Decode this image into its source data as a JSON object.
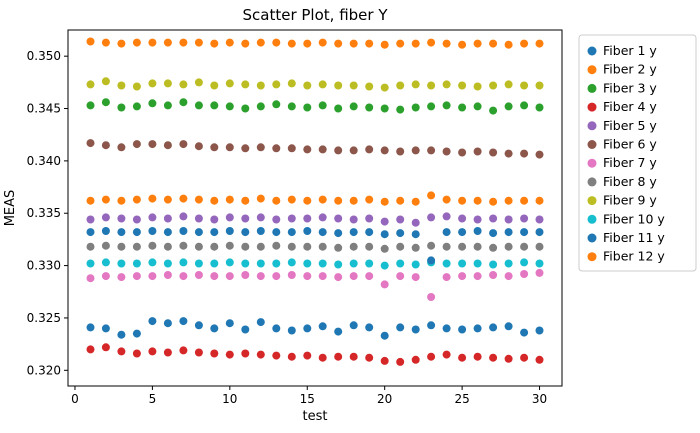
{
  "figure": {
    "title": "Scatter Plot, fiber Y",
    "xlabel": "test",
    "ylabel": "MEAS"
  },
  "chart_data": {
    "type": "scatter",
    "title": "Scatter Plot, fiber Y",
    "xlabel": "test",
    "ylabel": "MEAS",
    "legend_position": "right-outside",
    "grid": false,
    "xlim": [
      -0.45,
      31.45
    ],
    "ylim": [
      0.3185,
      0.3525
    ],
    "xticks": [
      0,
      5,
      10,
      15,
      20,
      25,
      30
    ],
    "yticks": [
      0.32,
      0.325,
      0.33,
      0.335,
      0.34,
      0.345,
      0.35
    ],
    "ytick_labels": [
      "0.320",
      "0.325",
      "0.330",
      "0.335",
      "0.340",
      "0.345",
      "0.350"
    ],
    "x": [
      1,
      2,
      3,
      4,
      5,
      6,
      7,
      8,
      9,
      10,
      11,
      12,
      13,
      14,
      15,
      16,
      17,
      18,
      19,
      20,
      21,
      22,
      23,
      24,
      25,
      26,
      27,
      28,
      29,
      30
    ],
    "series": [
      {
        "name": "Fiber 1 y",
        "color": "#1f77b4",
        "values": [
          0.3241,
          0.324,
          0.3234,
          0.3235,
          0.3247,
          0.3245,
          0.3247,
          0.3243,
          0.324,
          0.3245,
          0.3239,
          0.3246,
          0.324,
          0.3238,
          0.324,
          0.3242,
          0.3237,
          0.3243,
          0.3241,
          0.3233,
          0.3241,
          0.3239,
          0.3243,
          0.324,
          0.3239,
          0.324,
          0.3241,
          0.3242,
          0.3236,
          0.3238
        ]
      },
      {
        "name": "Fiber 2 y",
        "color": "#ff7f0e",
        "values": [
          0.3514,
          0.3513,
          0.3512,
          0.3513,
          0.3513,
          0.3513,
          0.3513,
          0.3513,
          0.3512,
          0.3513,
          0.3512,
          0.3513,
          0.3513,
          0.3512,
          0.3512,
          0.3513,
          0.3512,
          0.3512,
          0.3512,
          0.3511,
          0.3512,
          0.3512,
          0.3513,
          0.3512,
          0.3511,
          0.3512,
          0.3512,
          0.3511,
          0.3512,
          0.3512
        ]
      },
      {
        "name": "Fiber 3 y",
        "color": "#2ca02c",
        "values": [
          0.3453,
          0.3456,
          0.3451,
          0.3452,
          0.3455,
          0.3453,
          0.3456,
          0.3453,
          0.3453,
          0.3452,
          0.345,
          0.3452,
          0.3454,
          0.3452,
          0.3451,
          0.3453,
          0.345,
          0.3452,
          0.3451,
          0.345,
          0.3449,
          0.3451,
          0.3452,
          0.3453,
          0.3451,
          0.3452,
          0.3448,
          0.3452,
          0.3453,
          0.3451
        ]
      },
      {
        "name": "Fiber 4 y",
        "color": "#d62728",
        "values": [
          0.322,
          0.3222,
          0.3218,
          0.3216,
          0.3218,
          0.3217,
          0.3219,
          0.3217,
          0.3216,
          0.3215,
          0.3216,
          0.3215,
          0.3214,
          0.3213,
          0.3214,
          0.3212,
          0.3213,
          0.3213,
          0.3212,
          0.3209,
          0.3208,
          0.321,
          0.3213,
          0.3215,
          0.3212,
          0.3213,
          0.3212,
          0.3211,
          0.3212,
          0.321
        ]
      },
      {
        "name": "Fiber 5 y",
        "color": "#9467bd",
        "values": [
          0.3344,
          0.3346,
          0.3345,
          0.3344,
          0.3346,
          0.3345,
          0.3347,
          0.3345,
          0.3344,
          0.3346,
          0.3345,
          0.3346,
          0.3344,
          0.3345,
          0.3345,
          0.3346,
          0.3345,
          0.3344,
          0.3345,
          0.3342,
          0.3344,
          0.3341,
          0.3346,
          0.3347,
          0.3345,
          0.3344,
          0.3345,
          0.3344,
          0.3345,
          0.3344
        ]
      },
      {
        "name": "Fiber 6 y",
        "color": "#8c564b",
        "values": [
          0.3417,
          0.3415,
          0.3413,
          0.3416,
          0.3416,
          0.3415,
          0.3416,
          0.3414,
          0.3413,
          0.3413,
          0.3412,
          0.3413,
          0.3412,
          0.3412,
          0.3411,
          0.3411,
          0.341,
          0.341,
          0.3411,
          0.341,
          0.3409,
          0.341,
          0.341,
          0.3409,
          0.3408,
          0.3409,
          0.3408,
          0.3407,
          0.3407,
          0.3406
        ]
      },
      {
        "name": "Fiber 7 y",
        "color": "#e377c2",
        "values": [
          0.3288,
          0.329,
          0.3289,
          0.329,
          0.329,
          0.3291,
          0.329,
          0.3291,
          0.329,
          0.329,
          0.3291,
          0.329,
          0.329,
          0.3291,
          0.329,
          0.329,
          0.3289,
          0.329,
          0.329,
          0.3282,
          0.329,
          0.3289,
          0.327,
          0.3289,
          0.329,
          0.329,
          0.3291,
          0.329,
          0.3292,
          0.3293
        ]
      },
      {
        "name": "Fiber 8 y",
        "color": "#7f7f7f",
        "values": [
          0.3318,
          0.3319,
          0.3318,
          0.3318,
          0.3319,
          0.3318,
          0.3319,
          0.3318,
          0.3318,
          0.3319,
          0.3318,
          0.3318,
          0.3319,
          0.3318,
          0.3318,
          0.3318,
          0.3317,
          0.3318,
          0.3318,
          0.3316,
          0.3318,
          0.3317,
          0.3319,
          0.3318,
          0.3318,
          0.3318,
          0.3317,
          0.3318,
          0.3318,
          0.3318
        ]
      },
      {
        "name": "Fiber 9 y",
        "color": "#bcbd22",
        "values": [
          0.3473,
          0.3476,
          0.3472,
          0.3471,
          0.3474,
          0.3474,
          0.3473,
          0.3475,
          0.3472,
          0.3474,
          0.3473,
          0.3472,
          0.3473,
          0.3474,
          0.3472,
          0.3473,
          0.3472,
          0.3472,
          0.3471,
          0.347,
          0.3472,
          0.3473,
          0.3472,
          0.3473,
          0.3472,
          0.3471,
          0.3472,
          0.3473,
          0.3472,
          0.3472
        ]
      },
      {
        "name": "Fiber 10 y",
        "color": "#17becf",
        "values": [
          0.3302,
          0.3303,
          0.3302,
          0.3302,
          0.3303,
          0.3302,
          0.3303,
          0.3302,
          0.3302,
          0.3303,
          0.3302,
          0.3302,
          0.3302,
          0.3303,
          0.3302,
          0.3302,
          0.3301,
          0.3302,
          0.3302,
          0.33,
          0.3302,
          0.3301,
          0.3303,
          0.3302,
          0.3302,
          0.3302,
          0.3301,
          0.3302,
          0.3303,
          0.3302
        ]
      },
      {
        "name": "Fiber 11 y",
        "color": "#1f77b4",
        "values": [
          0.3332,
          0.3333,
          0.3332,
          0.3332,
          0.3333,
          0.3332,
          0.3333,
          0.3332,
          0.3332,
          0.3333,
          0.3332,
          0.3333,
          0.3332,
          0.3332,
          0.3333,
          0.3332,
          0.3331,
          0.3332,
          0.3332,
          0.333,
          0.3331,
          0.333,
          0.3305,
          0.3332,
          0.3332,
          0.3333,
          0.3331,
          0.3332,
          0.3332,
          0.3332
        ]
      },
      {
        "name": "Fiber 12 y",
        "color": "#ff7f0e",
        "values": [
          0.3362,
          0.3363,
          0.3362,
          0.3363,
          0.3364,
          0.3363,
          0.3364,
          0.3363,
          0.3362,
          0.3363,
          0.3362,
          0.3364,
          0.3362,
          0.3363,
          0.3362,
          0.3363,
          0.3362,
          0.3362,
          0.3363,
          0.3361,
          0.3362,
          0.3361,
          0.3367,
          0.3363,
          0.3362,
          0.3362,
          0.3361,
          0.3362,
          0.3362,
          0.3362
        ]
      }
    ]
  }
}
